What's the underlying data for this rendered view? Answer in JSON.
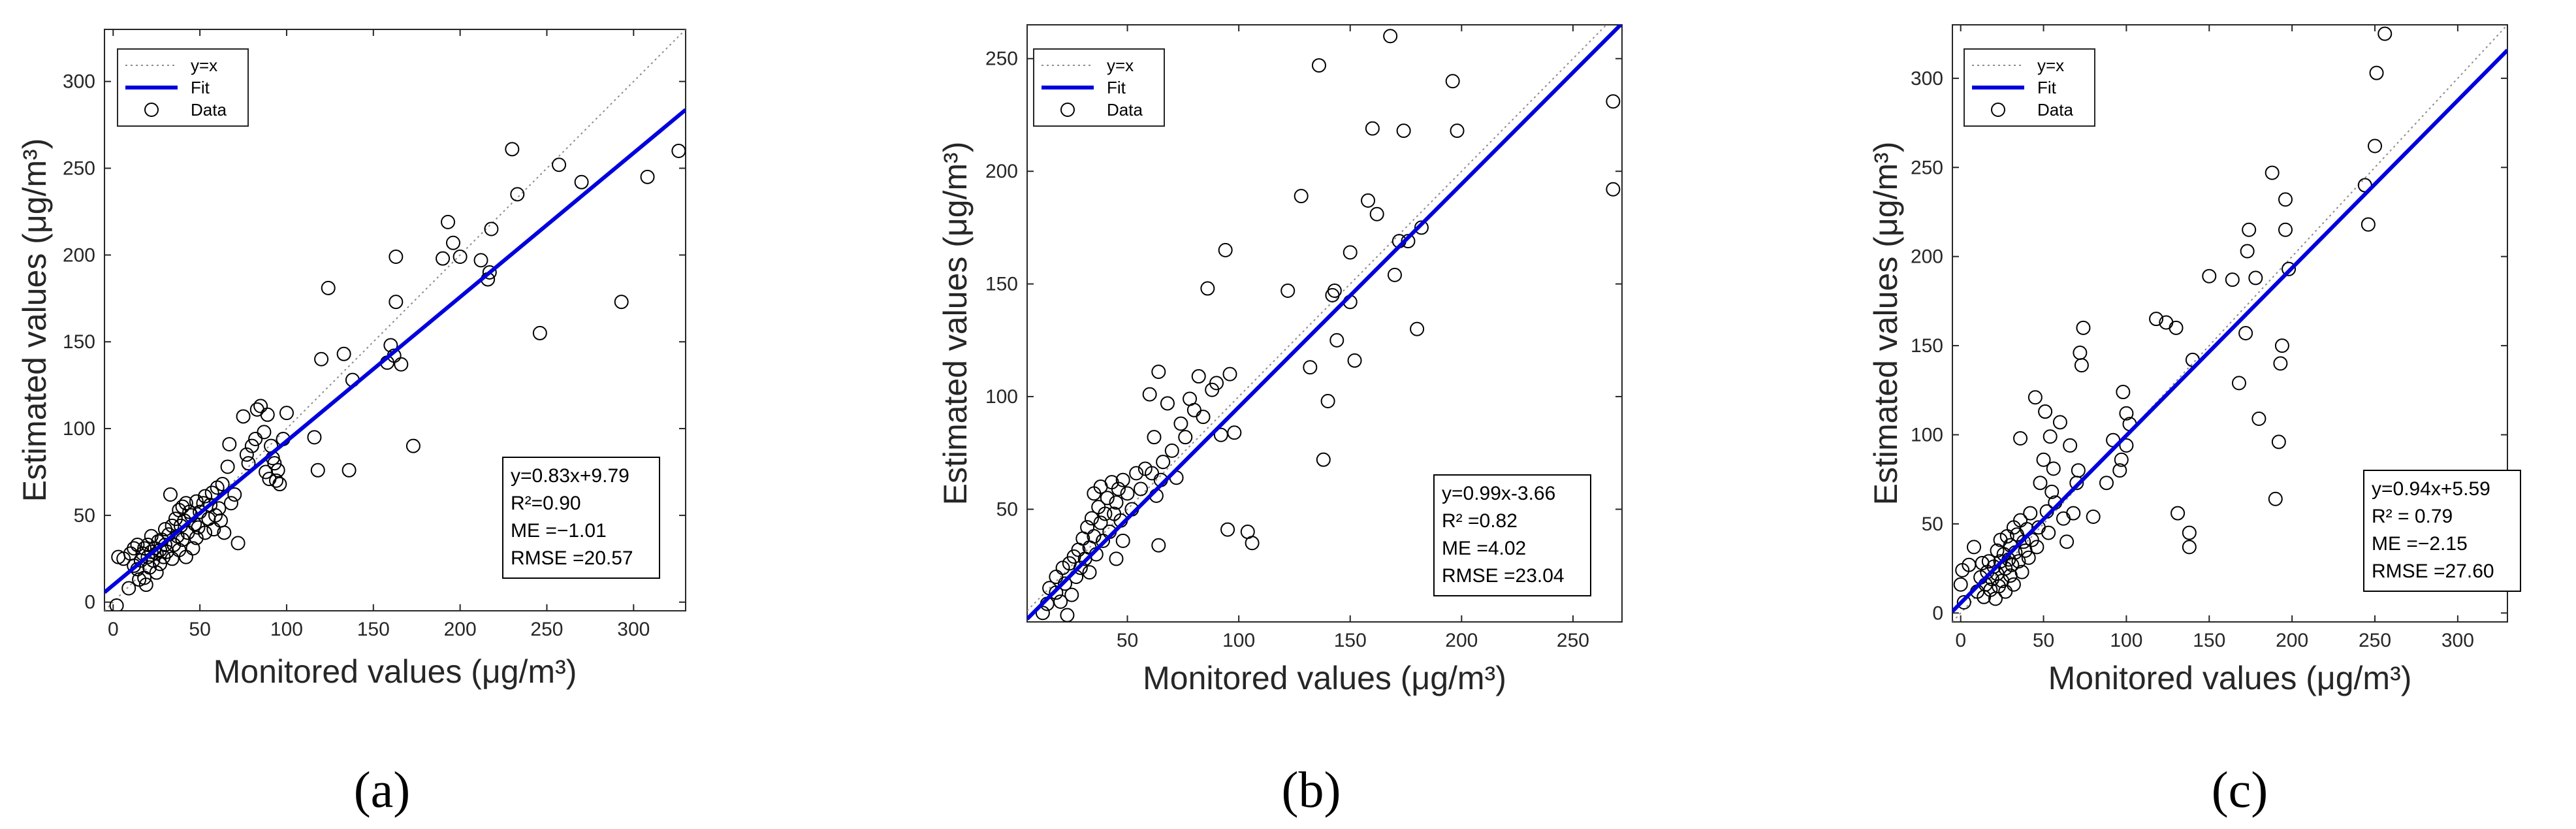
{
  "chart_data": [
    {
      "type": "scatter",
      "panel": "(a)",
      "xlabel": "Monitored values (μg/m³)",
      "ylabel": "Estimated values (μg/m³)",
      "xlim": [
        -5,
        330
      ],
      "ylim": [
        -5,
        330
      ],
      "xticks": [
        "0",
        "50",
        "100",
        "150",
        "200",
        "250",
        "300"
      ],
      "yticks": [
        "0",
        "50",
        "100",
        "150",
        "200",
        "250",
        "300"
      ],
      "legend": [
        "y=x",
        "Fit",
        "Data"
      ],
      "fit": {
        "slope": 0.83,
        "intercept": 9.79
      },
      "stats": {
        "equation": "y=0.83x+9.79",
        "r2": "R²=0.90",
        "me": "ME =−1.01",
        "rmse": "RMSE =20.57"
      },
      "points": [
        [
          2,
          -2
        ],
        [
          3,
          26
        ],
        [
          6,
          25
        ],
        [
          9,
          8
        ],
        [
          10,
          28
        ],
        [
          12,
          31
        ],
        [
          12,
          21
        ],
        [
          14,
          33
        ],
        [
          14,
          19
        ],
        [
          15,
          13
        ],
        [
          16,
          24
        ],
        [
          17,
          28
        ],
        [
          18,
          14
        ],
        [
          18,
          31
        ],
        [
          19,
          10
        ],
        [
          20,
          26
        ],
        [
          20,
          33
        ],
        [
          21,
          20
        ],
        [
          22,
          29
        ],
        [
          22,
          38
        ],
        [
          23,
          24
        ],
        [
          24,
          31
        ],
        [
          25,
          17
        ],
        [
          25,
          28
        ],
        [
          26,
          35
        ],
        [
          27,
          30
        ],
        [
          27,
          22
        ],
        [
          28,
          36
        ],
        [
          29,
          26
        ],
        [
          30,
          33
        ],
        [
          30,
          42
        ],
        [
          31,
          29
        ],
        [
          32,
          39
        ],
        [
          33,
          62
        ],
        [
          34,
          44
        ],
        [
          34,
          25
        ],
        [
          35,
          33
        ],
        [
          36,
          48
        ],
        [
          37,
          38
        ],
        [
          38,
          53
        ],
        [
          38,
          30
        ],
        [
          39,
          44
        ],
        [
          40,
          55
        ],
        [
          40,
          36
        ],
        [
          41,
          47
        ],
        [
          42,
          57
        ],
        [
          42,
          26
        ],
        [
          43,
          40
        ],
        [
          44,
          52
        ],
        [
          45,
          50
        ],
        [
          46,
          31
        ],
        [
          47,
          45
        ],
        [
          48,
          58
        ],
        [
          48,
          37
        ],
        [
          49,
          43
        ],
        [
          50,
          52
        ],
        [
          52,
          57
        ],
        [
          53,
          61
        ],
        [
          53,
          40
        ],
        [
          55,
          48
        ],
        [
          56,
          56
        ],
        [
          57,
          63
        ],
        [
          58,
          42
        ],
        [
          59,
          50
        ],
        [
          60,
          66
        ],
        [
          61,
          54
        ],
        [
          62,
          47
        ],
        [
          63,
          68
        ],
        [
          64,
          40
        ],
        [
          66,
          78
        ],
        [
          67,
          91
        ],
        [
          68,
          57
        ],
        [
          70,
          62
        ],
        [
          72,
          34
        ],
        [
          75,
          107
        ],
        [
          77,
          85
        ],
        [
          78,
          80
        ],
        [
          80,
          90
        ],
        [
          82,
          94
        ],
        [
          83,
          111
        ],
        [
          85,
          113
        ],
        [
          87,
          98
        ],
        [
          88,
          75
        ],
        [
          89,
          108
        ],
        [
          90,
          71
        ],
        [
          91,
          90
        ],
        [
          92,
          83
        ],
        [
          93,
          80
        ],
        [
          94,
          70
        ],
        [
          95,
          76
        ],
        [
          96,
          68
        ],
        [
          98,
          94
        ],
        [
          100,
          109
        ],
        [
          116,
          95
        ],
        [
          118,
          76
        ],
        [
          120,
          140
        ],
        [
          124,
          181
        ],
        [
          133,
          143
        ],
        [
          136,
          76
        ],
        [
          138,
          128
        ],
        [
          158,
          138
        ],
        [
          160,
          148
        ],
        [
          162,
          142
        ],
        [
          163,
          199
        ],
        [
          163,
          173
        ],
        [
          166,
          137
        ],
        [
          173,
          90
        ],
        [
          190,
          198
        ],
        [
          193,
          219
        ],
        [
          196,
          207
        ],
        [
          200,
          199
        ],
        [
          212,
          197
        ],
        [
          216,
          186
        ],
        [
          217,
          190
        ],
        [
          218,
          215
        ],
        [
          230,
          261
        ],
        [
          233,
          235
        ],
        [
          246,
          155
        ],
        [
          257,
          252
        ],
        [
          270,
          242
        ],
        [
          293,
          173
        ],
        [
          308,
          245
        ],
        [
          326,
          260
        ]
      ]
    },
    {
      "type": "scatter",
      "panel": "(b)",
      "xlabel": "Monitored values (μg/m³)",
      "ylabel": "Estimated values (μg/m³)",
      "xlim": [
        5,
        272
      ],
      "ylim": [
        0,
        265
      ],
      "xticks": [
        "50",
        "100",
        "150",
        "200",
        "250"
      ],
      "yticks": [
        "50",
        "100",
        "150",
        "200",
        "250"
      ],
      "legend": [
        "y=x",
        "Fit",
        "Data"
      ],
      "fit": {
        "slope": 0.99,
        "intercept": -3.66
      },
      "stats": {
        "equation": "y=0.99x-3.66",
        "r2": "R² =0.82",
        "me": "ME =4.02",
        "rmse": "RMSE =23.04"
      },
      "points": [
        [
          12,
          4
        ],
        [
          14,
          8
        ],
        [
          15,
          15
        ],
        [
          18,
          13
        ],
        [
          18,
          20
        ],
        [
          20,
          9
        ],
        [
          21,
          24
        ],
        [
          22,
          17
        ],
        [
          23,
          3
        ],
        [
          24,
          26
        ],
        [
          25,
          12
        ],
        [
          26,
          29
        ],
        [
          27,
          20
        ],
        [
          28,
          32
        ],
        [
          29,
          24
        ],
        [
          30,
          37
        ],
        [
          31,
          28
        ],
        [
          32,
          42
        ],
        [
          33,
          33
        ],
        [
          33,
          22
        ],
        [
          34,
          46
        ],
        [
          35,
          38
        ],
        [
          35,
          57
        ],
        [
          36,
          30
        ],
        [
          37,
          51
        ],
        [
          38,
          44
        ],
        [
          38,
          60
        ],
        [
          39,
          36
        ],
        [
          40,
          48
        ],
        [
          41,
          55
        ],
        [
          42,
          40
        ],
        [
          43,
          62
        ],
        [
          44,
          48
        ],
        [
          45,
          53
        ],
        [
          45,
          28
        ],
        [
          46,
          59
        ],
        [
          47,
          45
        ],
        [
          48,
          63
        ],
        [
          48,
          36
        ],
        [
          50,
          57
        ],
        [
          52,
          50
        ],
        [
          54,
          66
        ],
        [
          56,
          59
        ],
        [
          58,
          68
        ],
        [
          60,
          101
        ],
        [
          61,
          66
        ],
        [
          62,
          82
        ],
        [
          63,
          56
        ],
        [
          64,
          111
        ],
        [
          64,
          34
        ],
        [
          65,
          63
        ],
        [
          66,
          71
        ],
        [
          68,
          97
        ],
        [
          70,
          76
        ],
        [
          72,
          64
        ],
        [
          74,
          88
        ],
        [
          76,
          82
        ],
        [
          78,
          99
        ],
        [
          80,
          94
        ],
        [
          82,
          109
        ],
        [
          84,
          91
        ],
        [
          86,
          148
        ],
        [
          88,
          103
        ],
        [
          90,
          106
        ],
        [
          92,
          83
        ],
        [
          94,
          165
        ],
        [
          95,
          41
        ],
        [
          96,
          110
        ],
        [
          98,
          84
        ],
        [
          104,
          40
        ],
        [
          106,
          35
        ],
        [
          122,
          147
        ],
        [
          128,
          189
        ],
        [
          132,
          113
        ],
        [
          136,
          247
        ],
        [
          138,
          72
        ],
        [
          140,
          98
        ],
        [
          142,
          145
        ],
        [
          143,
          147
        ],
        [
          144,
          125
        ],
        [
          150,
          164
        ],
        [
          150,
          142
        ],
        [
          152,
          116
        ],
        [
          158,
          187
        ],
        [
          160,
          219
        ],
        [
          162,
          181
        ],
        [
          168,
          260
        ],
        [
          170,
          154
        ],
        [
          172,
          169
        ],
        [
          174,
          218
        ],
        [
          176,
          169
        ],
        [
          180,
          130
        ],
        [
          182,
          175
        ],
        [
          196,
          240
        ],
        [
          198,
          218
        ],
        [
          268,
          231
        ],
        [
          268,
          192
        ]
      ]
    },
    {
      "type": "scatter",
      "panel": "(c)",
      "xlabel": "Monitored values (μg/m³)",
      "ylabel": "Estimated values (μg/m³)",
      "xlim": [
        -5,
        330
      ],
      "ylim": [
        -5,
        330
      ],
      "xticks": [
        "0",
        "50",
        "100",
        "150",
        "200",
        "250",
        "300"
      ],
      "yticks": [
        "0",
        "50",
        "100",
        "150",
        "200",
        "250",
        "300"
      ],
      "legend": [
        "y=x",
        "Fit",
        "Data"
      ],
      "fit": {
        "slope": 0.94,
        "intercept": 5.59
      },
      "stats": {
        "equation": "y=0.94x+5.59",
        "r2": "R² = 0.79",
        "me": "ME =−2.15",
        "rmse": "RMSE =27.60"
      },
      "points": [
        [
          0,
          16
        ],
        [
          1,
          24
        ],
        [
          2,
          6
        ],
        [
          5,
          27
        ],
        [
          8,
          37
        ],
        [
          10,
          12
        ],
        [
          12,
          20
        ],
        [
          13,
          28
        ],
        [
          14,
          9
        ],
        [
          15,
          16
        ],
        [
          16,
          23
        ],
        [
          17,
          29
        ],
        [
          18,
          13
        ],
        [
          19,
          19
        ],
        [
          20,
          26
        ],
        [
          21,
          8
        ],
        [
          22,
          35
        ],
        [
          22,
          22
        ],
        [
          23,
          15
        ],
        [
          24,
          41
        ],
        [
          24,
          29
        ],
        [
          25,
          18
        ],
        [
          26,
          33
        ],
        [
          27,
          25
        ],
        [
          27,
          12
        ],
        [
          28,
          43
        ],
        [
          29,
          30
        ],
        [
          30,
          21
        ],
        [
          30,
          38
        ],
        [
          31,
          27
        ],
        [
          32,
          48
        ],
        [
          32,
          16
        ],
        [
          33,
          34
        ],
        [
          34,
          44
        ],
        [
          35,
          29
        ],
        [
          36,
          98
        ],
        [
          36,
          52
        ],
        [
          37,
          23
        ],
        [
          38,
          40
        ],
        [
          39,
          35
        ],
        [
          40,
          47
        ],
        [
          41,
          31
        ],
        [
          42,
          56
        ],
        [
          43,
          41
        ],
        [
          45,
          121
        ],
        [
          46,
          37
        ],
        [
          47,
          48
        ],
        [
          48,
          73
        ],
        [
          50,
          86
        ],
        [
          51,
          113
        ],
        [
          52,
          57
        ],
        [
          53,
          45
        ],
        [
          54,
          99
        ],
        [
          55,
          68
        ],
        [
          56,
          81
        ],
        [
          57,
          62
        ],
        [
          60,
          107
        ],
        [
          62,
          53
        ],
        [
          64,
          40
        ],
        [
          66,
          94
        ],
        [
          68,
          56
        ],
        [
          70,
          73
        ],
        [
          71,
          80
        ],
        [
          72,
          146
        ],
        [
          73,
          139
        ],
        [
          74,
          160
        ],
        [
          80,
          54
        ],
        [
          88,
          73
        ],
        [
          92,
          97
        ],
        [
          96,
          80
        ],
        [
          97,
          86
        ],
        [
          98,
          124
        ],
        [
          100,
          112
        ],
        [
          100,
          94
        ],
        [
          102,
          106
        ],
        [
          118,
          165
        ],
        [
          124,
          163
        ],
        [
          130,
          160
        ],
        [
          131,
          56
        ],
        [
          138,
          45
        ],
        [
          138,
          37
        ],
        [
          140,
          142
        ],
        [
          150,
          189
        ],
        [
          164,
          187
        ],
        [
          168,
          129
        ],
        [
          172,
          157
        ],
        [
          173,
          203
        ],
        [
          174,
          215
        ],
        [
          178,
          188
        ],
        [
          180,
          109
        ],
        [
          188,
          247
        ],
        [
          190,
          64
        ],
        [
          192,
          96
        ],
        [
          193,
          140
        ],
        [
          194,
          150
        ],
        [
          196,
          215
        ],
        [
          196,
          232
        ],
        [
          198,
          193
        ],
        [
          244,
          240
        ],
        [
          246,
          218
        ],
        [
          250,
          262
        ],
        [
          251,
          303
        ],
        [
          256,
          325
        ]
      ]
    }
  ]
}
